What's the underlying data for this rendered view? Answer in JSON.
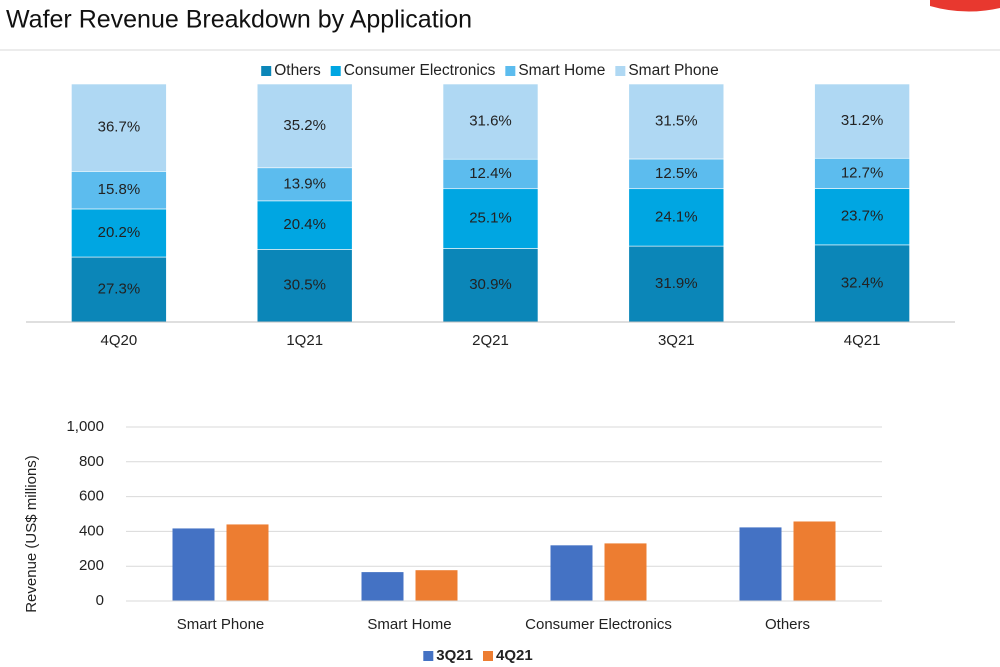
{
  "title": "Wafer Revenue Breakdown by Application",
  "chart_data": [
    {
      "type": "bar",
      "stacked": true,
      "legend": "top",
      "categories": [
        "4Q20",
        "1Q21",
        "2Q21",
        "3Q21",
        "4Q21"
      ],
      "ylim": [
        0,
        100
      ],
      "series": [
        {
          "name": "Others",
          "color": "#0b86b8",
          "values": [
            27.3,
            30.5,
            30.9,
            31.9,
            32.4
          ],
          "value_labels": [
            "27.3%",
            "30.5%",
            "30.9%",
            "31.9%",
            "32.4%"
          ]
        },
        {
          "name": "Consumer Electronics",
          "color": "#00a6e2",
          "values": [
            20.2,
            20.4,
            25.1,
            24.1,
            23.7
          ],
          "value_labels": [
            "20.2%",
            "20.4%",
            "25.1%",
            "24.1%",
            "23.7%"
          ]
        },
        {
          "name": "Smart Home",
          "color": "#5cbcee",
          "values": [
            15.8,
            13.9,
            12.4,
            12.5,
            12.7
          ],
          "value_labels": [
            "15.8%",
            "13.9%",
            "12.4%",
            "12.5%",
            "12.7%"
          ]
        },
        {
          "name": "Smart Phone",
          "color": "#afd8f3",
          "values": [
            36.7,
            35.2,
            31.6,
            31.5,
            31.2
          ],
          "value_labels": [
            "36.7%",
            "35.2%",
            "31.6%",
            "31.5%",
            "31.2%"
          ]
        }
      ]
    },
    {
      "type": "bar",
      "stacked": false,
      "legend": "bottom",
      "grid": true,
      "ylabel": "Revenue (US$  millions)",
      "categories": [
        "Smart Phone",
        "Smart Home",
        "Consumer Electronics",
        "Others"
      ],
      "ylim": [
        0,
        1000
      ],
      "yticks": [
        0,
        200,
        400,
        600,
        800,
        {
          "value": 1000,
          "label": "1,000"
        }
      ],
      "series": [
        {
          "name": "3Q21",
          "color": "#4472c4",
          "values": [
            417,
            166,
            320,
            423
          ]
        },
        {
          "name": "4Q21",
          "color": "#ed7d31",
          "values": [
            440,
            177,
            331,
            457
          ]
        }
      ]
    }
  ]
}
